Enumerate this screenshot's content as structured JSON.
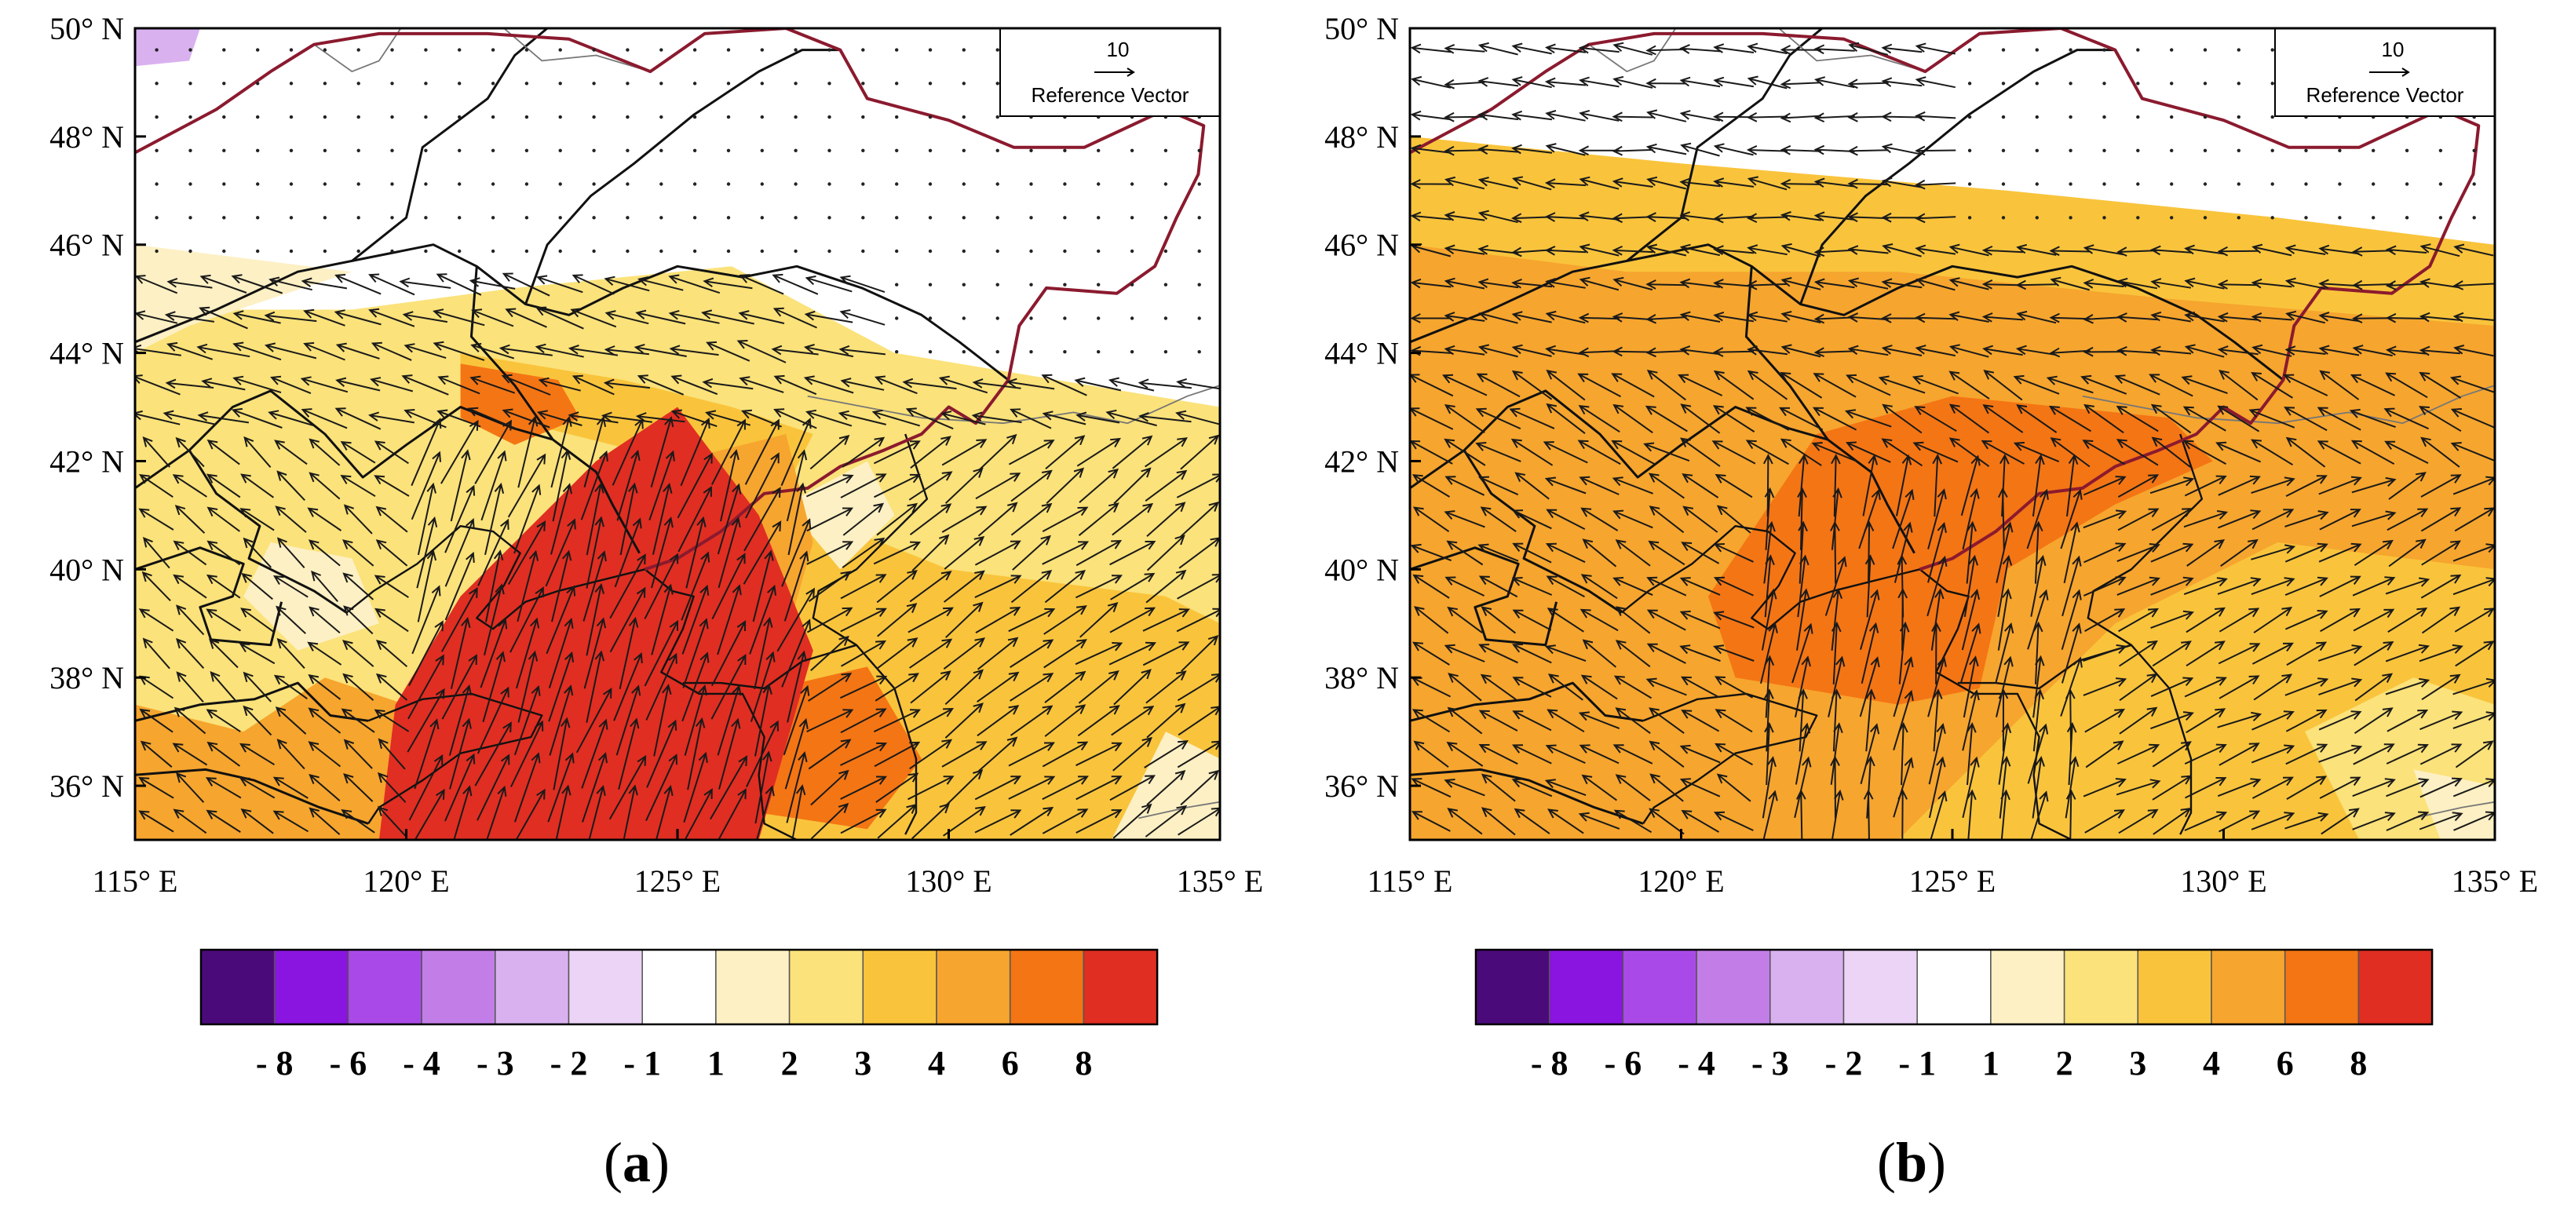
{
  "figure": {
    "longitude_ticks": [
      "115° E",
      "120° E",
      "125° E",
      "130° E",
      "135° E"
    ],
    "latitude_ticks": [
      "50° N",
      "48° N",
      "46° N",
      "44° N",
      "42° N",
      "40° N",
      "38° N",
      "36° N"
    ],
    "reference_vector": {
      "magnitude": "10",
      "label": "Reference Vector"
    },
    "colorbar": {
      "levels": [
        "- 8",
        "- 6",
        "- 4",
        "- 3",
        "- 2",
        "- 1",
        "1",
        "2",
        "3",
        "4",
        "6",
        "8"
      ],
      "colors": [
        "#4b0a7a",
        "#8a14e0",
        "#a94ae8",
        "#c27ee6",
        "#d9b1ef",
        "#ebd4f6",
        "#ffffff",
        "#fdf0c4",
        "#fbe27a",
        "#f9c43c",
        "#f6a52e",
        "#f47514",
        "#e02e22"
      ]
    },
    "panels": [
      {
        "id": "a",
        "caption_open": "(",
        "caption_letter": "a",
        "caption_close": ")"
      },
      {
        "id": "b",
        "caption_open": "(",
        "caption_letter": "b",
        "caption_close": ")"
      }
    ],
    "colors": {
      "border_red": "#8b1a2e",
      "province_line": "#111111",
      "coast_grey": "#777777"
    }
  }
}
